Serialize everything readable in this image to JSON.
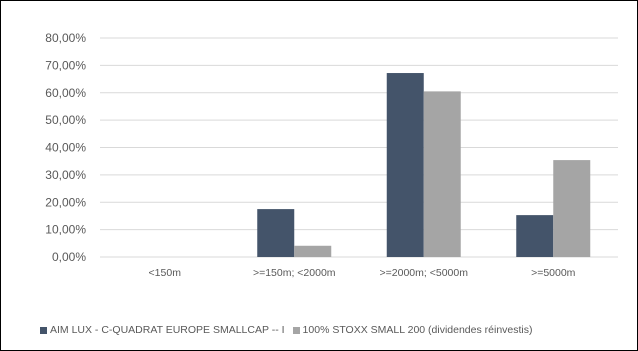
{
  "chart_data": {
    "type": "bar",
    "categories": [
      "<150m",
      ">=150m; <2000m",
      ">=2000m; <5000m",
      ">=5000m"
    ],
    "series": [
      {
        "name": "AIM LUX - C-QUADRAT EUROPE SMALLCAP -- I",
        "values": [
          0,
          17.5,
          67.2,
          15.3
        ],
        "color": "#44546A"
      },
      {
        "name": "100% STOXX SMALL 200 (dividendes réinvestis)",
        "values": [
          0,
          4.1,
          60.5,
          35.4
        ],
        "color": "#A5A5A5"
      }
    ],
    "ylim": [
      0,
      80
    ],
    "yticks": [
      0,
      10,
      20,
      30,
      40,
      50,
      60,
      70,
      80
    ],
    "ytick_labels": [
      "0,00%",
      "10,00%",
      "20,00%",
      "30,00%",
      "40,00%",
      "50,00%",
      "60,00%",
      "70,00%",
      "80,00%"
    ],
    "grid": true,
    "legend_position": "bottom-left",
    "title": "",
    "xlabel": "",
    "ylabel": ""
  }
}
